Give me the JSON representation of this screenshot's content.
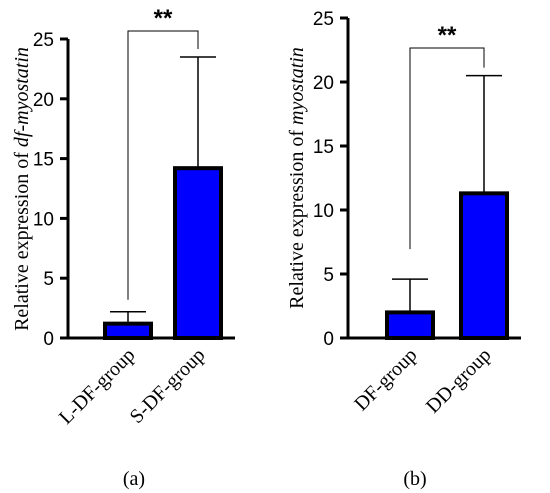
{
  "chart_data": [
    {
      "type": "bar",
      "panel_label": "(a)",
      "ylabel_prefix": "Relative expression of ",
      "ylabel_italic": "df-myostatin",
      "categories": [
        "L-DF-group",
        "S-DF-group"
      ],
      "values": [
        1.2,
        14.2
      ],
      "error_upper": [
        2.2,
        23.5
      ],
      "ylim": [
        0,
        25
      ],
      "yticks": [
        "0",
        "5",
        "10",
        "15",
        "20",
        "25"
      ],
      "significance": "**",
      "bar_color": "#0000ff"
    },
    {
      "type": "bar",
      "panel_label": "(b)",
      "ylabel_prefix": "Relative expression of ",
      "ylabel_italic": "myostatin",
      "categories": [
        "DF-group",
        "DD-group"
      ],
      "values": [
        2.0,
        11.3
      ],
      "error_upper": [
        4.6,
        20.5
      ],
      "ylim": [
        0,
        25
      ],
      "yticks": [
        "0",
        "5",
        "10",
        "15",
        "20",
        "25"
      ],
      "significance": "**",
      "bar_color": "#0000ff"
    }
  ]
}
